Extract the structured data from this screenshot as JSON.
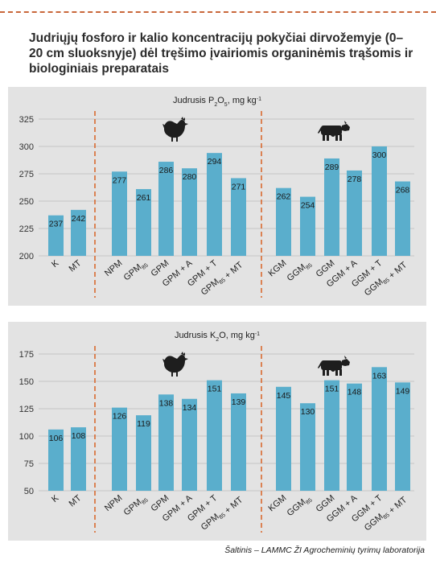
{
  "title": "Judriųjų fosforo ir kalio koncentracijų pokyčiai dirvožemyje (0–20 cm sluoksnyje) dėl tręšimo įvairiomis organinėmis trąšomis ir biologiniais preparatais",
  "source": "Šaltinis – LAMMC ŽI Agrocheminių tyrimų laboratorija",
  "colors": {
    "bar": "#5aaecc",
    "divider": "#d9692f",
    "grid": "#c4c4c4",
    "panel": "#e3e3e3"
  },
  "icons": [
    "chicken-icon",
    "cow-icon"
  ],
  "chart_data": [
    {
      "type": "bar",
      "title": "Judrusis P₂O₅, mg kg⁻¹",
      "categories": [
        "K",
        "MT",
        "NPM",
        "GPM₈₅",
        "GPM",
        "GPM + A",
        "GPM + T",
        "GPM₈₅ + MT",
        "KGM",
        "GGM₈₅",
        "GGM",
        "GGM + A",
        "GGM + T",
        "GGM₈₅ + MT"
      ],
      "values": [
        237,
        242,
        277,
        261,
        286,
        280,
        294,
        271,
        262,
        254,
        289,
        278,
        300,
        268
      ],
      "ylim": [
        200,
        325
      ],
      "yticks": [
        "200",
        "225",
        "250",
        "275",
        "300",
        "325"
      ],
      "grid": true,
      "groups": [
        [
          0,
          1
        ],
        [
          2,
          3,
          4,
          5,
          6,
          7
        ],
        [
          8,
          9,
          10,
          11,
          12,
          13
        ]
      ]
    },
    {
      "type": "bar",
      "title": "Judrusis K₂O, mg kg⁻¹",
      "categories": [
        "K",
        "MT",
        "NPM",
        "GPM₈₅",
        "GPM",
        "GPM + A",
        "GPM + T",
        "GPM₈₅ + MT",
        "KGM",
        "GGM₈₅",
        "GGM",
        "GGM + A",
        "GGM + T",
        "GGM₈₅ + MT"
      ],
      "values": [
        106,
        108,
        126,
        119,
        138,
        134,
        151,
        139,
        145,
        130,
        151,
        148,
        163,
        149
      ],
      "ylim": [
        50,
        175
      ],
      "yticks": [
        "50",
        "75",
        "100",
        "125",
        "150",
        "175"
      ],
      "grid": true,
      "groups": [
        [
          0,
          1
        ],
        [
          2,
          3,
          4,
          5,
          6,
          7
        ],
        [
          8,
          9,
          10,
          11,
          12,
          13
        ]
      ]
    }
  ]
}
